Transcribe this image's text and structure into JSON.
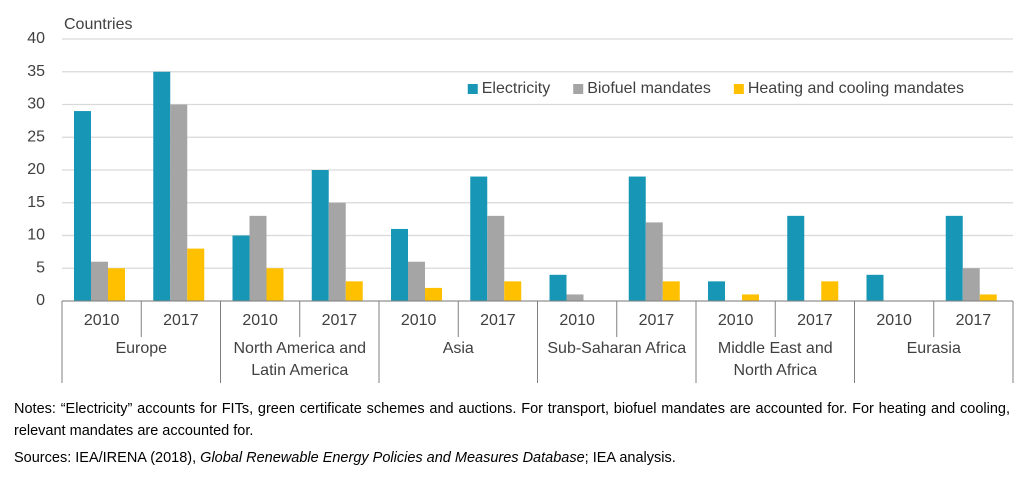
{
  "chart_data": {
    "type": "bar",
    "y_label": "Countries",
    "categories": [
      "2010",
      "2017",
      "2010",
      "2017",
      "2010",
      "2017",
      "2010",
      "2017",
      "2010",
      "2017",
      "2010",
      "2017"
    ],
    "groups": [
      "Europe",
      "North America and Latin America",
      "Asia",
      "Sub-Saharan Africa",
      "Middle East and North Africa",
      "Eurasia"
    ],
    "series": [
      {
        "name": "Electricity",
        "color": "#1797b5",
        "values": [
          29,
          35,
          10,
          20,
          11,
          19,
          4,
          19,
          3,
          13,
          4,
          13
        ]
      },
      {
        "name": "Biofuel mandates",
        "color": "#a5a5a5",
        "values": [
          6,
          30,
          13,
          15,
          6,
          13,
          1,
          12,
          0,
          0,
          0,
          5
        ]
      },
      {
        "name": "Heating and cooling mandates",
        "color": "#ffc000",
        "values": [
          5,
          8,
          5,
          3,
          2,
          3,
          0,
          3,
          1,
          3,
          0,
          1
        ]
      }
    ],
    "ylim": [
      0,
      40
    ],
    "yticks": [
      0,
      5,
      10,
      15,
      20,
      25,
      30,
      35,
      40
    ],
    "grid": true,
    "legend": "top-right",
    "notes": "Notes: “Electricity” accounts for FITs, green certificate schemes and auctions. For transport, biofuel mandates are accounted for. For heating and cooling, relevant mandates are accounted for.",
    "sources": {
      "before": "Sources: IEA/IRENA (2018), ",
      "italic": "Global Renewable Energy Policies and Measures Database",
      "after": "; IEA analysis."
    }
  }
}
